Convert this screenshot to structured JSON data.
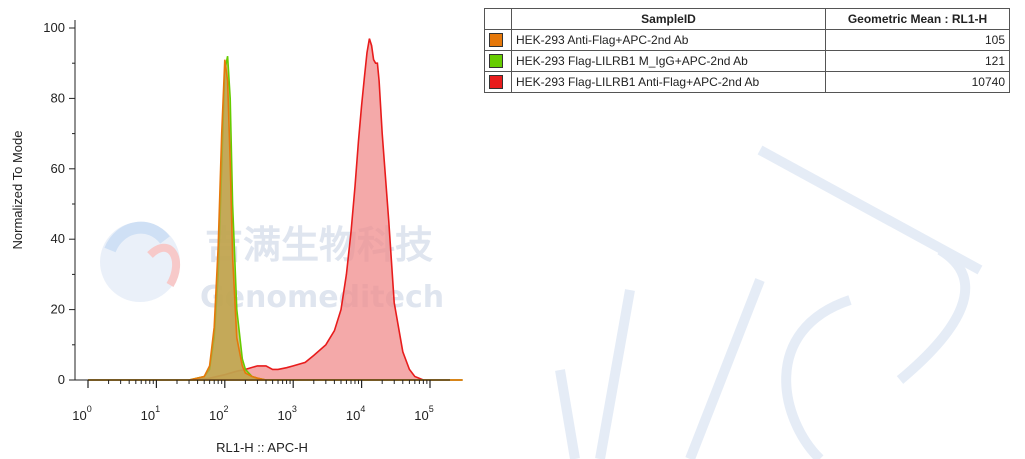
{
  "chart_data": {
    "type": "area",
    "xlabel": "RL1-H :: APC-H",
    "ylabel": "Normalized To Mode",
    "xscale": "log",
    "xlim": [
      10,
      300000
    ],
    "ylim": [
      0,
      100
    ],
    "y_ticks": [
      0,
      20,
      40,
      60,
      80,
      100
    ],
    "x_ticks": [
      {
        "base": "10",
        "exp": "0",
        "value": 1
      },
      {
        "base": "10",
        "exp": "1",
        "value": 10
      },
      {
        "base": "10",
        "exp": "2",
        "value": 100
      },
      {
        "base": "10",
        "exp": "3",
        "value": 1000
      },
      {
        "base": "10",
        "exp": "4",
        "value": 10000
      },
      {
        "base": "10",
        "exp": "5",
        "value": 100000
      }
    ],
    "series": [
      {
        "name": "HEK-293 Flag-LILRB1 Anti-Flag+APC-2nd Ab",
        "color": "#e81c1c",
        "fill": "#f08c8c",
        "x": [
          1,
          30,
          60,
          100,
          150,
          200,
          300,
          400,
          500,
          600,
          800,
          1000,
          1500,
          2000,
          3000,
          4000,
          5000,
          6000,
          7000,
          8000,
          9000,
          10000,
          11000,
          12000,
          13000,
          14000,
          15000,
          16000,
          17000,
          18000,
          20000,
          25000,
          30000,
          40000,
          50000,
          60000,
          80000,
          300000
        ],
        "y": [
          0,
          0,
          0.5,
          1.5,
          2.5,
          3,
          4,
          4,
          3,
          3,
          3.5,
          4,
          5,
          7,
          10,
          14,
          20,
          30,
          42,
          55,
          68,
          78,
          86,
          93,
          97,
          95,
          91,
          90,
          90,
          85,
          70,
          45,
          22,
          8,
          3,
          1,
          0,
          0
        ]
      },
      {
        "name": "HEK-293 Flag-LILRB1 M_IgG+APC-2nd Ab",
        "color": "#66cc00",
        "fill": "#b8b060",
        "x": [
          1,
          30,
          50,
          60,
          70,
          80,
          90,
          100,
          110,
          120,
          130,
          150,
          180,
          200,
          250,
          300,
          400,
          600,
          1000,
          300000
        ],
        "y": [
          0,
          0,
          1,
          3,
          12,
          30,
          60,
          88,
          92,
          80,
          50,
          20,
          6,
          3,
          1,
          0.5,
          0,
          0,
          0,
          0
        ]
      },
      {
        "name": "HEK-293 Anti-Flag+APC-2nd Ab",
        "color": "#e6780a",
        "fill": "#c2a04a",
        "x": [
          1,
          30,
          50,
          60,
          70,
          80,
          90,
          100,
          110,
          120,
          130,
          150,
          180,
          200,
          250,
          300,
          400,
          600,
          1000,
          300000
        ],
        "y": [
          0,
          0,
          1,
          4,
          15,
          38,
          70,
          91,
          85,
          62,
          35,
          12,
          4,
          2,
          1,
          0.5,
          0,
          0,
          0,
          0
        ]
      }
    ],
    "table": {
      "headers": [
        "",
        "SampleID",
        "Geometric Mean : RL1-H"
      ],
      "rows": [
        {
          "color": "#e6780a",
          "sample": "HEK-293 Anti-Flag+APC-2nd Ab",
          "value": "105"
        },
        {
          "color": "#66cc00",
          "sample": "HEK-293 Flag-LILRB1 M_IgG+APC-2nd Ab",
          "value": "121"
        },
        {
          "color": "#e81c1c",
          "sample": "HEK-293 Flag-LILRB1 Anti-Flag+APC-2nd Ab",
          "value": "10740"
        }
      ]
    }
  },
  "watermark": {
    "cn_text": "吉满生物科技",
    "en_text": "Genomeditech"
  }
}
